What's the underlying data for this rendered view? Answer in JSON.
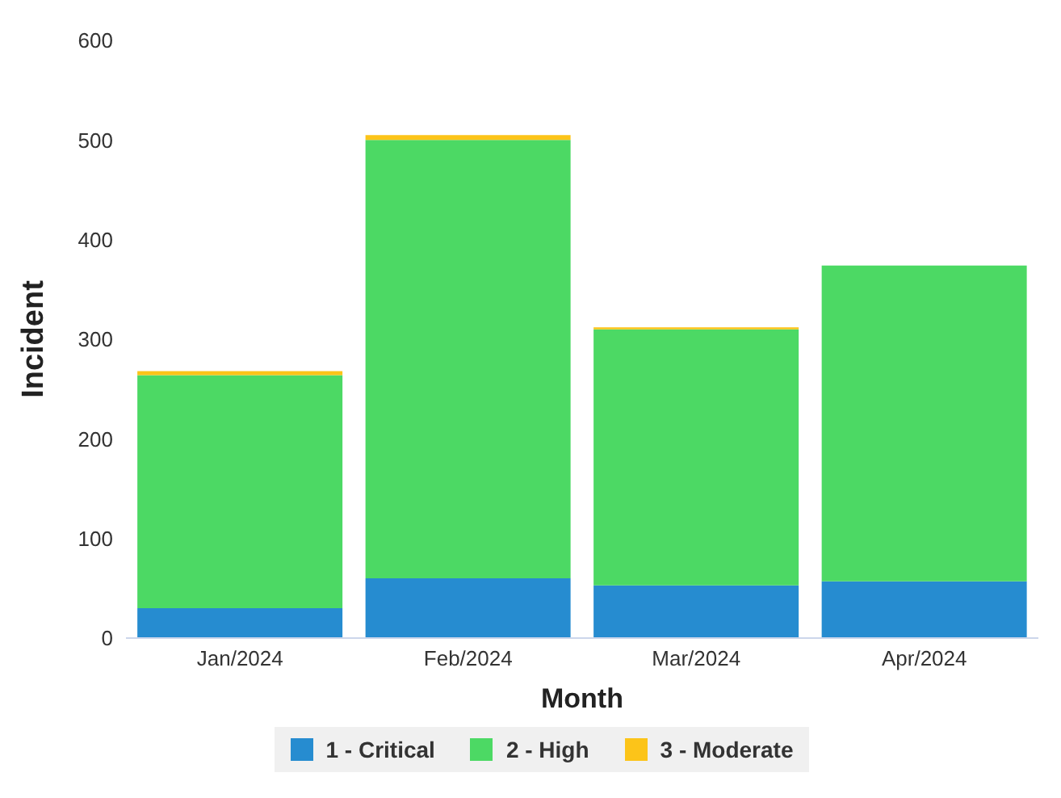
{
  "chart_data": {
    "type": "bar",
    "stacked": true,
    "xlabel": "Month",
    "ylabel": "Incident",
    "categories": [
      "Jan/2024",
      "Feb/2024",
      "Mar/2024",
      "Apr/2024"
    ],
    "series": [
      {
        "name": "1 - Critical",
        "color": "#268cd0",
        "values": [
          30,
          60,
          53,
          57
        ]
      },
      {
        "name": "2 - High",
        "color": "#4cd964",
        "values": [
          234,
          440,
          257,
          317
        ]
      },
      {
        "name": "3 - Moderate",
        "color": "#fcc419",
        "values": [
          4,
          5,
          2,
          0
        ]
      }
    ],
    "ylim": [
      0,
      600
    ],
    "yticks": [
      0,
      100,
      200,
      300,
      400,
      500,
      600
    ],
    "grid": false,
    "legend": "bottom"
  }
}
